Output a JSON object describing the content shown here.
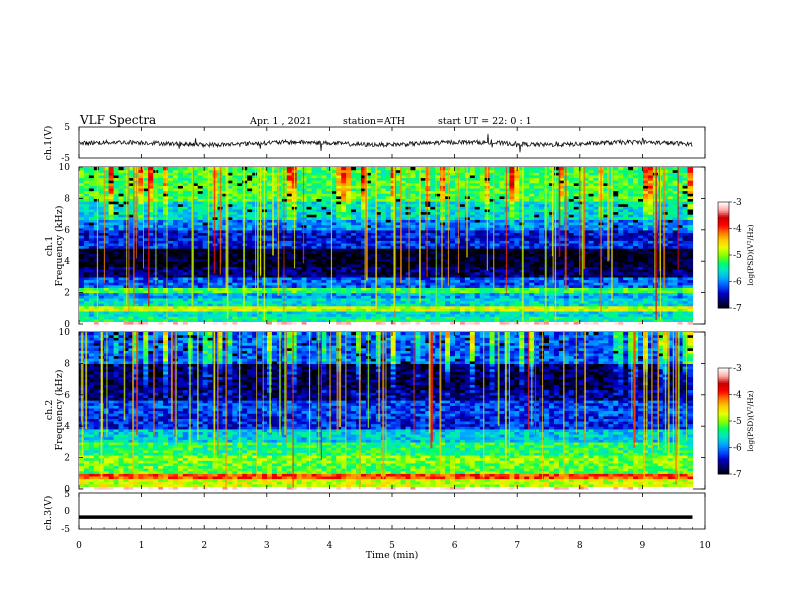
{
  "header": {
    "title": "VLF  Spectra",
    "date": "Apr. 1  , 2021",
    "station": "station=ATH",
    "start_ut": "start  UT  =    22: 0   : 1"
  },
  "colors": {
    "spectrogram_scale": [
      "#000000",
      "#000066",
      "#0000cc",
      "#0055ff",
      "#00aaff",
      "#00e5c8",
      "#00ff66",
      "#88ff00",
      "#e6ff00",
      "#ffcc00",
      "#ff7700",
      "#ff0000",
      "#cc0000",
      "#ffaaaa",
      "#ffffff"
    ]
  },
  "chart_data": [
    {
      "type": "line",
      "panel": "ch1-waveform",
      "ylabel": "ch.1(V)",
      "ylim": [
        -5,
        5
      ],
      "yticks": [
        "5",
        "-5"
      ],
      "xlim": [
        0,
        10
      ],
      "description_value": "noisy waveform hovering near -0.3 V, extending from 0 to about 9.8 min"
    },
    {
      "type": "heatmap",
      "panel": "ch1-spectrogram",
      "ylabel": "ch.1\nFrequency  (kHz)",
      "ylim": [
        0,
        10
      ],
      "yticks": [
        "0",
        "2",
        "4",
        "6",
        "8",
        "10"
      ],
      "xlim": [
        0,
        10
      ],
      "data_end_min": 9.8,
      "colorbar": {
        "label": "log(PSD)(V²/Hz)",
        "range": [
          -7,
          -3
        ],
        "ticks": [
          "-3",
          "-4",
          "-5",
          "-6",
          "-7"
        ]
      },
      "frequency_profile_kHz": [
        [
          0.0,
          0.15,
          -3.0
        ],
        [
          0.15,
          0.5,
          -5.4
        ],
        [
          0.5,
          0.8,
          -5.6
        ],
        [
          0.8,
          1.1,
          -4.8
        ],
        [
          1.1,
          1.6,
          -5.6
        ],
        [
          1.6,
          2.0,
          -5.9
        ],
        [
          2.0,
          2.35,
          -5.2
        ],
        [
          2.35,
          3.0,
          -6.1
        ],
        [
          3.0,
          3.6,
          -6.7
        ],
        [
          3.6,
          4.9,
          -6.95
        ],
        [
          4.9,
          5.4,
          -6.3
        ],
        [
          5.4,
          6.0,
          -6.4
        ],
        [
          6.0,
          6.6,
          -6.0
        ],
        [
          6.6,
          7.8,
          -5.6
        ],
        [
          7.8,
          10.0,
          -5.2
        ]
      ]
    },
    {
      "type": "heatmap",
      "panel": "ch2-spectrogram",
      "ylabel": "ch.2\nFrequency  (kHz)",
      "ylim": [
        0,
        10
      ],
      "yticks": [
        "0",
        "2",
        "4",
        "6",
        "8",
        "10"
      ],
      "xlim": [
        0,
        10
      ],
      "data_end_min": 9.8,
      "colorbar": {
        "label": "log(PSD)(V²/Hz)",
        "range": [
          -7,
          -3
        ],
        "ticks": [
          "-3",
          "-4",
          "-5",
          "-6",
          "-7"
        ]
      },
      "frequency_profile_kHz": [
        [
          0.0,
          0.15,
          -3.0
        ],
        [
          0.15,
          0.6,
          -4.8
        ],
        [
          0.6,
          1.0,
          -4.0
        ],
        [
          1.0,
          1.6,
          -5.1
        ],
        [
          1.6,
          2.2,
          -5.0
        ],
        [
          2.2,
          3.0,
          -5.3
        ],
        [
          3.0,
          3.9,
          -5.7
        ],
        [
          3.9,
          4.6,
          -6.3
        ],
        [
          4.6,
          5.6,
          -6.2
        ],
        [
          5.6,
          6.4,
          -6.6
        ],
        [
          6.4,
          8.0,
          -6.75
        ],
        [
          8.0,
          10.0,
          -6.1
        ]
      ]
    },
    {
      "type": "line",
      "panel": "ch3-waveform",
      "ylabel": "ch.3(V)",
      "ylim": [
        -5,
        5
      ],
      "yticks": [
        "5",
        "0",
        "-5"
      ],
      "xlim": [
        0,
        10
      ],
      "description_value": "flat thick trace near -1.7 V from 0 to about 9.8 min"
    }
  ],
  "xaxis": {
    "label": "Time  (min)",
    "ticks": [
      "0",
      "1",
      "2",
      "3",
      "4",
      "5",
      "6",
      "7",
      "8",
      "9",
      "10"
    ]
  }
}
